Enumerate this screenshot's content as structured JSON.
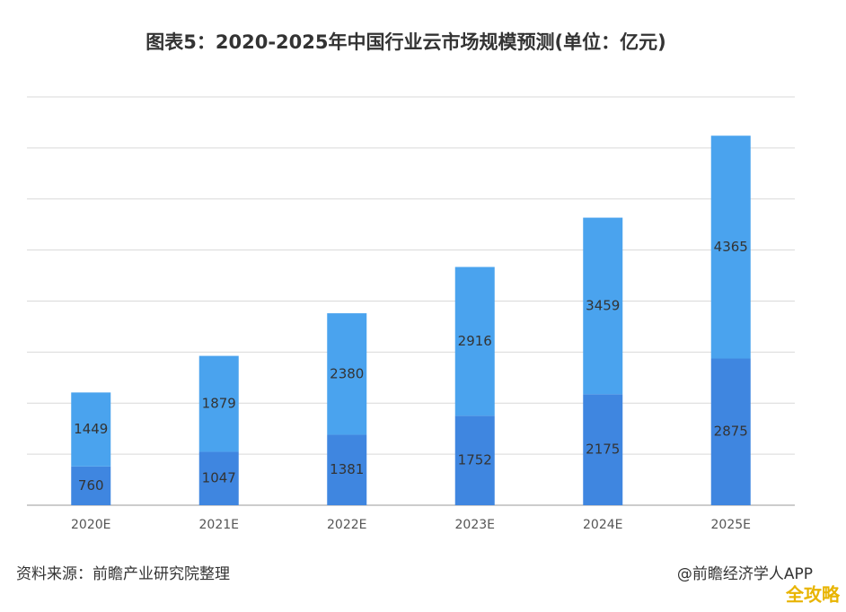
{
  "chart_data": {
    "type": "stacked_bar",
    "title": "图表5：2020-2025年中国行业云市场规模预测(单位：亿元)",
    "categories": [
      "2020E",
      "2021E",
      "2022E",
      "2023E",
      "2024E",
      "2025E"
    ],
    "series": [
      {
        "color": "#3f86e0",
        "values": [
          760,
          1047,
          1381,
          1752,
          2175,
          2875
        ]
      },
      {
        "color": "#4aa3ee",
        "values": [
          1449,
          1879,
          2380,
          2916,
          3459,
          4365
        ]
      }
    ],
    "ylim": [
      0,
      8000
    ],
    "yticks": [
      0,
      1000,
      2000,
      3000,
      4000,
      5000,
      6000,
      7000,
      8000
    ],
    "ytick_labels": false,
    "grid": true,
    "source": "资料来源：前瞻产业研究院整理",
    "credit": "@前瞻经济学人APP",
    "watermark": "全攻略"
  }
}
